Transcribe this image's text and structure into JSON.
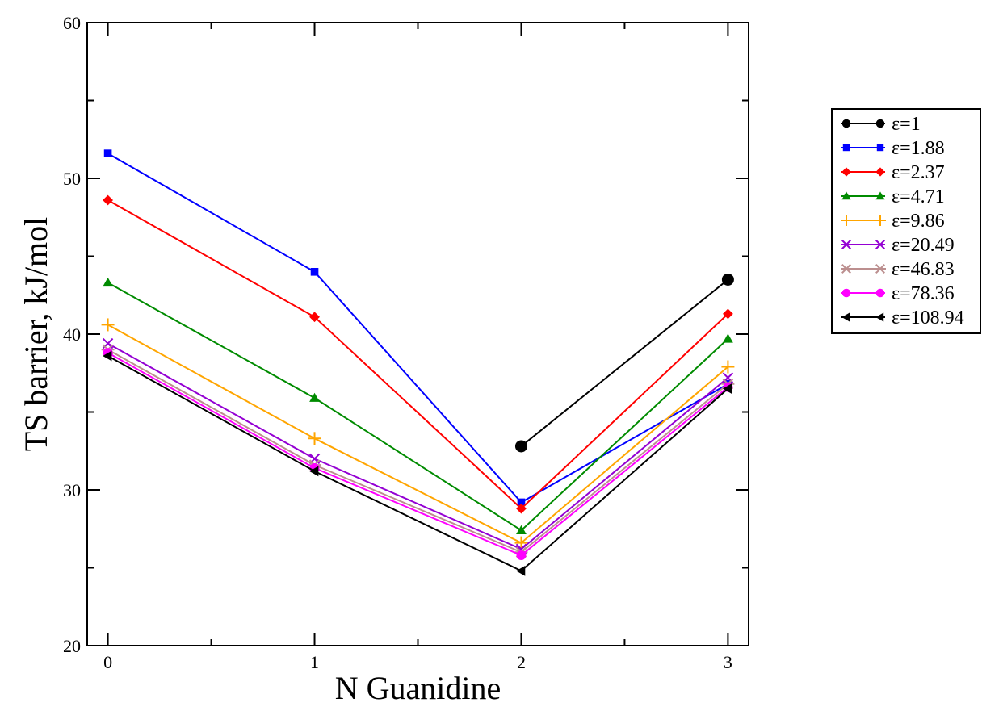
{
  "chart_data": {
    "type": "line",
    "title": "",
    "xlabel": "N Guanidine",
    "ylabel": "TS barrier, kJ/mol",
    "x": [
      0,
      1,
      2,
      3
    ],
    "xlim": [
      -0.1,
      3.1
    ],
    "ylim": [
      20,
      60
    ],
    "xticks": [
      "0",
      "1",
      "2",
      "3"
    ],
    "yticks": [
      "20",
      "30",
      "40",
      "50",
      "60"
    ],
    "grid": false,
    "legend_position": "right",
    "series": [
      {
        "name": "ε=1",
        "color": "#000000",
        "marker": "circle",
        "values": [
          null,
          null,
          32.8,
          43.5
        ]
      },
      {
        "name": "ε=1.88",
        "color": "#0000ff",
        "marker": "square",
        "values": [
          51.6,
          44.0,
          29.2,
          36.8
        ]
      },
      {
        "name": "ε=2.37",
        "color": "#ff0000",
        "marker": "diamond",
        "values": [
          48.6,
          41.1,
          28.8,
          41.3
        ]
      },
      {
        "name": "ε=4.71",
        "color": "#008b00",
        "marker": "triangle-up",
        "values": [
          43.3,
          35.9,
          27.4,
          39.7
        ]
      },
      {
        "name": "ε=9.86",
        "color": "#ffa500",
        "marker": "plus",
        "values": [
          40.6,
          33.3,
          26.6,
          37.9
        ]
      },
      {
        "name": "ε=20.49",
        "color": "#9400d3",
        "marker": "x",
        "values": [
          39.4,
          32.0,
          26.2,
          37.2
        ]
      },
      {
        "name": "ε=46.83",
        "color": "#bc8f8f",
        "marker": "asterisk",
        "values": [
          39.0,
          31.6,
          26.0,
          36.8
        ]
      },
      {
        "name": "ε=78.36",
        "color": "#ff00ff",
        "marker": "circle",
        "values": [
          38.8,
          31.4,
          25.8,
          36.6
        ]
      },
      {
        "name": "ε=108.94",
        "color": "#000000",
        "marker": "triangle-left",
        "values": [
          38.6,
          31.2,
          24.8,
          36.5
        ]
      }
    ]
  }
}
